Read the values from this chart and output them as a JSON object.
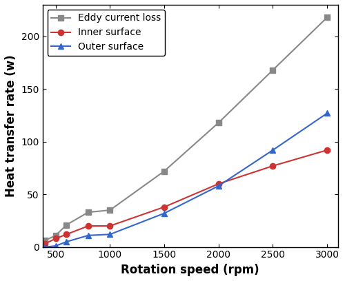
{
  "x": [
    400,
    500,
    600,
    800,
    1000,
    1500,
    2000,
    2500,
    3000
  ],
  "eddy_current_loss": [
    6,
    11,
    21,
    33,
    35,
    72,
    118,
    168,
    218
  ],
  "inner_surface": [
    3,
    8,
    12,
    20,
    20,
    38,
    60,
    77,
    92
  ],
  "outer_surface": [
    0,
    1,
    5,
    11,
    12,
    32,
    58,
    92,
    127
  ],
  "eddy_color": "#888888",
  "inner_color": "#cc3333",
  "outer_color": "#3366cc",
  "eddy_label": "Eddy current loss",
  "inner_label": "Inner surface",
  "outer_label": "Outer surface",
  "xlabel": "Rotation speed (rpm)",
  "ylabel": "Heat transfer rate (w)",
  "xlim": [
    380,
    3100
  ],
  "ylim": [
    0,
    230
  ],
  "xticks": [
    500,
    1000,
    1500,
    2000,
    2500,
    3000
  ],
  "yticks": [
    0,
    50,
    100,
    150,
    200
  ],
  "legend_fontsize": 10,
  "axis_label_fontsize": 12,
  "tick_labelsize": 10
}
